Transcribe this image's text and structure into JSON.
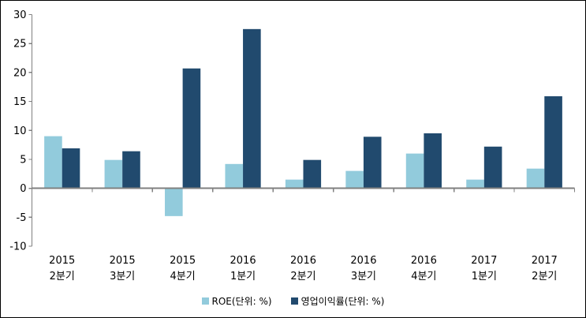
{
  "chart_data": {
    "type": "bar",
    "title": "",
    "xlabel": "",
    "ylabel": "",
    "categories": [
      [
        "2015",
        "2분기"
      ],
      [
        "2015",
        "3분기"
      ],
      [
        "2015",
        "4분기"
      ],
      [
        "2016",
        "1분기"
      ],
      [
        "2016",
        "2분기"
      ],
      [
        "2016",
        "3분기"
      ],
      [
        "2016",
        "4분기"
      ],
      [
        "2017",
        "1분기"
      ],
      [
        "2017",
        "2분기"
      ]
    ],
    "series": [
      {
        "name": "ROE(단위: %)",
        "color": "#92CBDC",
        "values": [
          9.0,
          4.9,
          -4.8,
          4.2,
          1.5,
          3.0,
          6.0,
          1.5,
          3.4
        ]
      },
      {
        "name": "영업이익률(단위: %)",
        "color": "#214A6E",
        "values": [
          6.9,
          6.4,
          20.7,
          27.5,
          4.9,
          8.9,
          9.5,
          7.2,
          15.9
        ]
      }
    ],
    "ylim": [
      -10,
      30
    ],
    "yticks": [
      30,
      25,
      20,
      15,
      10,
      5,
      0,
      -5,
      -10
    ],
    "grid": false,
    "legend_position": "bottom",
    "axis_color": "#808080",
    "text_color": "#000000",
    "background_color": "#FFFFFF",
    "border_color": "#000000"
  }
}
